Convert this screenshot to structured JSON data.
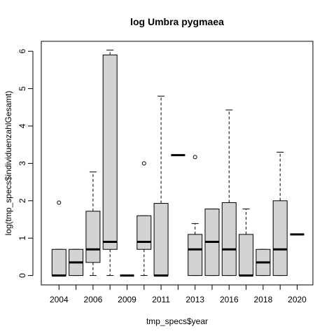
{
  "chart_data": {
    "type": "boxplot",
    "title": "log Umbra pygmaea",
    "xlabel": "tmp_specs$year",
    "ylabel": "log(tmp_specs$individuenzahlGesamt)",
    "ylim": [
      0,
      6
    ],
    "yticks": [
      0,
      1,
      2,
      3,
      4,
      5,
      6
    ],
    "categories": [
      "2004",
      "2005",
      "2006",
      "2008",
      "2009",
      "2010",
      "2011",
      "2012",
      "2013",
      "2015",
      "2016",
      "2017",
      "2018",
      "2019",
      "2020"
    ],
    "tick_labels_shown": [
      "2004",
      "2006",
      "2009",
      "2011",
      "2013",
      "2016",
      "2018",
      "2020"
    ],
    "box_fill": "#d3d3d3",
    "boxes": [
      {
        "category": "2004",
        "lower_whisker": 0,
        "q1": 0,
        "median": 0,
        "q3": 0.7,
        "upper_whisker": 0.7,
        "outliers": [
          1.95
        ]
      },
      {
        "category": "2005",
        "lower_whisker": 0,
        "q1": 0,
        "median": 0.35,
        "q3": 0.7,
        "upper_whisker": 0.7,
        "outliers": []
      },
      {
        "category": "2006",
        "lower_whisker": 0,
        "q1": 0.35,
        "median": 0.7,
        "q3": 1.72,
        "upper_whisker": 2.77,
        "outliers": []
      },
      {
        "category": "2008",
        "lower_whisker": 0,
        "q1": 0.7,
        "median": 0.9,
        "q3": 5.9,
        "upper_whisker": 6.03,
        "outliers": []
      },
      {
        "category": "2009",
        "lower_whisker": 0,
        "q1": 0,
        "median": 0,
        "q3": 0,
        "upper_whisker": 0,
        "outliers": []
      },
      {
        "category": "2010",
        "lower_whisker": 0,
        "q1": 0.7,
        "median": 0.9,
        "q3": 1.6,
        "upper_whisker": 1.6,
        "outliers": [
          3.0
        ]
      },
      {
        "category": "2011",
        "lower_whisker": 0,
        "q1": 0,
        "median": 0,
        "q3": 1.93,
        "upper_whisker": 4.8,
        "outliers": []
      },
      {
        "category": "2012",
        "lower_whisker": 3.22,
        "q1": 3.22,
        "median": 3.22,
        "q3": 3.22,
        "upper_whisker": 3.22,
        "outliers": []
      },
      {
        "category": "2013",
        "lower_whisker": 0,
        "q1": 0,
        "median": 0.7,
        "q3": 1.1,
        "upper_whisker": 1.39,
        "outliers": [
          3.17
        ]
      },
      {
        "category": "2015",
        "lower_whisker": 0,
        "q1": 0,
        "median": 0.9,
        "q3": 1.78,
        "upper_whisker": 1.78,
        "outliers": []
      },
      {
        "category": "2016",
        "lower_whisker": 0,
        "q1": 0,
        "median": 0.7,
        "q3": 1.95,
        "upper_whisker": 4.43,
        "outliers": []
      },
      {
        "category": "2017",
        "lower_whisker": 0,
        "q1": 0,
        "median": 0,
        "q3": 1.1,
        "upper_whisker": 1.78,
        "outliers": []
      },
      {
        "category": "2018",
        "lower_whisker": 0,
        "q1": 0,
        "median": 0.35,
        "q3": 0.7,
        "upper_whisker": 0.7,
        "outliers": []
      },
      {
        "category": "2019",
        "lower_whisker": 0,
        "q1": 0,
        "median": 0.7,
        "q3": 2.0,
        "upper_whisker": 3.3,
        "outliers": []
      },
      {
        "category": "2020",
        "lower_whisker": 1.1,
        "q1": 1.1,
        "median": 1.1,
        "q3": 1.1,
        "upper_whisker": 1.1,
        "outliers": []
      }
    ]
  }
}
